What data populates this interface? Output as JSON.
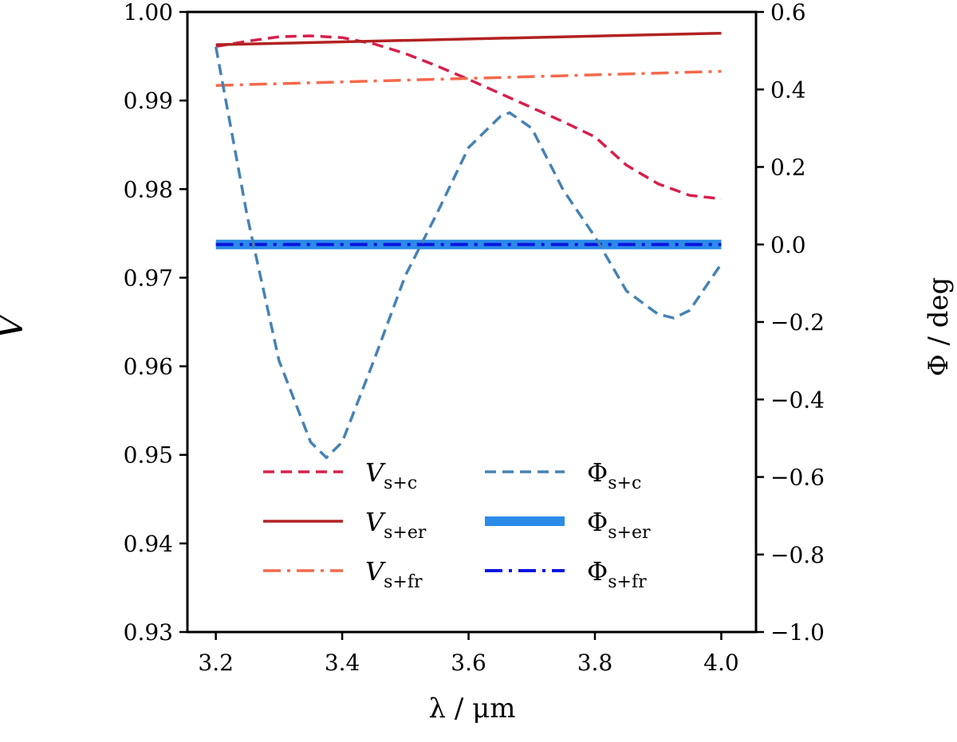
{
  "chart_data": {
    "type": "line",
    "title": "",
    "xlabel": "λ / μm",
    "ylabel_left": "V",
    "ylabel_right": "Φ / deg",
    "xlim": [
      3.155,
      4.055
    ],
    "ylim_left": [
      0.93,
      1.0
    ],
    "ylim_right": [
      -1.0,
      0.6
    ],
    "x_ticks": [
      3.2,
      3.4,
      3.6,
      3.8,
      4.0
    ],
    "x_tick_labels": [
      "3.2",
      "3.4",
      "3.6",
      "3.8",
      "4.0"
    ],
    "y_left_ticks": [
      0.93,
      0.94,
      0.95,
      0.96,
      0.97,
      0.98,
      0.99,
      1.0
    ],
    "y_left_tick_labels": [
      "0.93",
      "0.94",
      "0.95",
      "0.96",
      "0.97",
      "0.98",
      "0.99",
      "1.00"
    ],
    "y_right_ticks": [
      -1.0,
      -0.8,
      -0.6,
      -0.4,
      -0.2,
      0.0,
      0.2,
      0.4,
      0.6
    ],
    "y_right_tick_labels": [
      "−1.0",
      "−0.8",
      "−0.6",
      "−0.4",
      "−0.2",
      "0.0",
      "0.2",
      "0.4",
      "0.6"
    ],
    "grid": false,
    "legend_position": "lower-center",
    "series": [
      {
        "name": "V_s+c",
        "label_main": "V",
        "label_sub": "s+c",
        "axis": "left",
        "color": "#d6204b",
        "style": "dashed",
        "width": 3.5,
        "x": [
          3.2,
          3.25,
          3.3,
          3.35,
          3.4,
          3.45,
          3.5,
          3.55,
          3.6,
          3.65,
          3.7,
          3.75,
          3.8,
          3.85,
          3.9,
          3.95,
          4.0
        ],
        "values": [
          0.9961,
          0.9967,
          0.9972,
          0.9973,
          0.9971,
          0.9964,
          0.9953,
          0.9939,
          0.9924,
          0.9908,
          0.9892,
          0.9876,
          0.9859,
          0.9827,
          0.9806,
          0.9793,
          0.9789
        ]
      },
      {
        "name": "V_s+er",
        "label_main": "V",
        "label_sub": "s+er",
        "axis": "left",
        "color": "#b22222",
        "style": "solid",
        "width": 3.5,
        "x": [
          3.2,
          4.0
        ],
        "values": [
          0.9963,
          0.9976
        ]
      },
      {
        "name": "V_s+fr",
        "label_main": "V",
        "label_sub": "s+fr",
        "axis": "left",
        "color": "#f4694a",
        "style": "dashdot",
        "width": 3.5,
        "x": [
          3.2,
          4.0
        ],
        "values": [
          0.9917,
          0.9933
        ]
      },
      {
        "name": "Φ_s+c",
        "label_main": "Φ",
        "label_sub": "s+c",
        "axis": "right",
        "color": "#4682b4",
        "style": "dashed",
        "width": 3.5,
        "x": [
          3.2,
          3.25,
          3.3,
          3.35,
          3.375,
          3.4,
          3.45,
          3.5,
          3.55,
          3.6,
          3.65,
          3.665,
          3.7,
          3.75,
          3.8,
          3.85,
          3.9,
          3.925,
          3.95,
          4.0
        ],
        "values": [
          0.51,
          0.07,
          -0.3,
          -0.51,
          -0.55,
          -0.51,
          -0.3,
          -0.08,
          0.08,
          0.25,
          0.33,
          0.34,
          0.3,
          0.14,
          0.02,
          -0.12,
          -0.18,
          -0.19,
          -0.17,
          -0.05
        ]
      },
      {
        "name": "Φ_s+er",
        "label_main": "Φ",
        "label_sub": "s+er",
        "axis": "right",
        "color": "#2c8be8",
        "style": "solid",
        "width": 12,
        "x": [
          3.2,
          4.0
        ],
        "values": [
          0.0,
          0.0
        ]
      },
      {
        "name": "Φ_s+fr",
        "label_main": "Φ",
        "label_sub": "s+fr",
        "axis": "right",
        "color": "#0a16e0",
        "style": "dashdot",
        "width": 4,
        "x": [
          3.2,
          4.0
        ],
        "values": [
          0.0,
          0.0
        ]
      }
    ]
  }
}
